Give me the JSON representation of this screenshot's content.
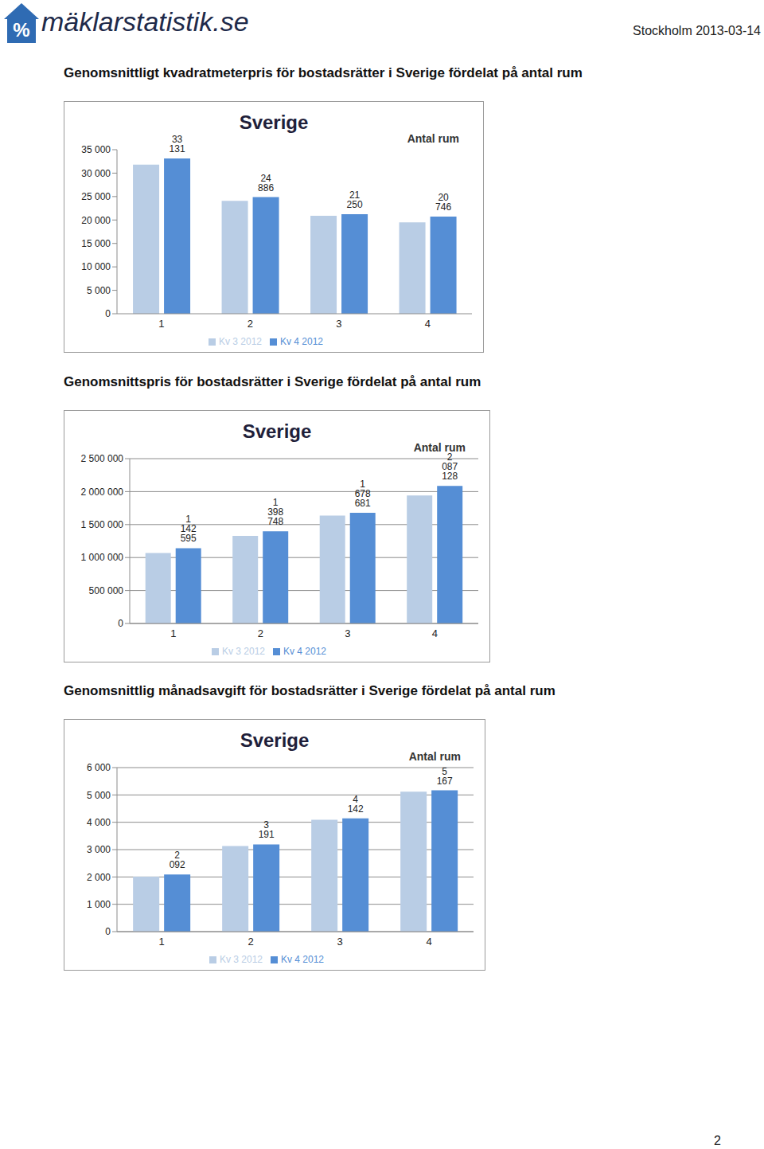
{
  "header": {
    "logo_icon": "%",
    "logo_text": "mäklarstatistik.se",
    "place_date": "Stockholm 2013-03-14"
  },
  "page_number": 2,
  "chart_data": [
    {
      "type": "bar",
      "title": "Genomsnittligt kvadratmeterpris för bostadsrätter i Sverige fördelat på antal rum",
      "subtitle": "Sverige",
      "xlabel": "Antal rum",
      "categories": [
        "1",
        "2",
        "3",
        "4"
      ],
      "series": [
        {
          "name": "Kv 3 2012",
          "color": "#b9cde5",
          "values": [
            31800,
            24100,
            20900,
            19500
          ]
        },
        {
          "name": "Kv 4 2012",
          "color": "#558ed5",
          "values": [
            33131,
            24886,
            21250,
            20746
          ],
          "data_labels": true,
          "value_labels": [
            "33 131",
            "24 886",
            "21 250",
            "20 746"
          ]
        }
      ],
      "ylim": [
        0,
        35000
      ],
      "yticks": [
        0,
        {
          "value": 5000,
          "label": "5 000"
        },
        {
          "value": 10000,
          "label": "10 000"
        },
        {
          "value": 15000,
          "label": "15 000"
        },
        {
          "value": 20000,
          "label": "20 000"
        },
        {
          "value": 25000,
          "label": "25 000"
        },
        {
          "value": 30000,
          "label": "30 000"
        },
        {
          "value": 35000,
          "label": "35 000"
        }
      ],
      "grid": false,
      "legend": "bottom"
    },
    {
      "type": "bar",
      "title": "Genomsnittspris för bostadsrätter i Sverige fördelat på antal rum",
      "subtitle": "Sverige",
      "xlabel": "Antal rum",
      "categories": [
        "1",
        "2",
        "3",
        "4"
      ],
      "series": [
        {
          "name": "Kv 3 2012",
          "color": "#b9cde5",
          "values": [
            1070000,
            1330000,
            1635000,
            1940000
          ]
        },
        {
          "name": "Kv 4 2012",
          "color": "#558ed5",
          "values": [
            1142595,
            1398748,
            1678681,
            2087128
          ],
          "data_labels": true,
          "value_labels": [
            "1 142 595",
            "1 398 748",
            "1 678 681",
            "2 087 128"
          ]
        }
      ],
      "ylim": [
        0,
        2500000
      ],
      "yticks": [
        0,
        {
          "value": 500000,
          "label": "500 000"
        },
        {
          "value": 1000000,
          "label": "1 000 000"
        },
        {
          "value": 1500000,
          "label": "1 500 000"
        },
        {
          "value": 2000000,
          "label": "2 000 000"
        },
        {
          "value": 2500000,
          "label": "2 500 000"
        }
      ],
      "grid": true,
      "legend": "bottom"
    },
    {
      "type": "bar",
      "title": "Genomsnittlig månadsavgift för bostadsrätter i Sverige fördelat på antal rum",
      "subtitle": "Sverige",
      "xlabel": "Antal rum",
      "categories": [
        "1",
        "2",
        "3",
        "4"
      ],
      "series": [
        {
          "name": "Kv 3 2012",
          "color": "#b9cde5",
          "values": [
            2010,
            3130,
            4090,
            5120
          ]
        },
        {
          "name": "Kv 4 2012",
          "color": "#558ed5",
          "values": [
            2092,
            3191,
            4142,
            5167
          ],
          "data_labels": true,
          "value_labels": [
            "2 092",
            "3 191",
            "4 142",
            "5 167"
          ]
        }
      ],
      "ylim": [
        0,
        6000
      ],
      "yticks": [
        0,
        {
          "value": 1000,
          "label": "1 000"
        },
        {
          "value": 2000,
          "label": "2 000"
        },
        {
          "value": 3000,
          "label": "3 000"
        },
        {
          "value": 4000,
          "label": "4 000"
        },
        {
          "value": 5000,
          "label": "5 000"
        },
        {
          "value": 6000,
          "label": "6 000"
        }
      ],
      "grid": true,
      "legend": "bottom"
    }
  ]
}
